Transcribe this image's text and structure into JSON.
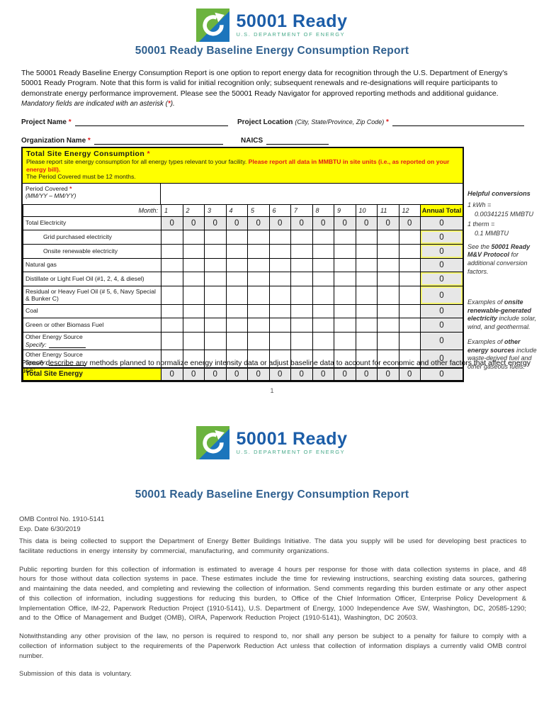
{
  "colors": {
    "accent_blue": "#2E5F8F",
    "logo_green": "#6CB33F",
    "logo_blue": "#1C75BC",
    "logo_text_blue": "#1B5DA8",
    "doe_teal": "#45A888",
    "highlight_yellow": "#FFFF00",
    "alert_red": "#E11B1B",
    "cell_gray": "#E7E7E7"
  },
  "logo": {
    "brand": "50001 Ready",
    "agency": "U.S. DEPARTMENT OF ENERGY"
  },
  "title": "50001 Ready Baseline Energy Consumption Report",
  "intro": {
    "text": "The 50001 Ready Baseline Energy Consumption Report is one option to report energy data for recognition through the U.S. Department of Energy's 50001 Ready Program. Note that this form is valid for initial recognition only; subsequent renewals and re-designations will require participants to demonstrate energy performance improvement. Please see the 50001 Ready Navigator for approved reporting methods and additional guidance. ",
    "note_pre": "Mandatory fields are indicated with an asterisk (",
    "note_asterisk": "*",
    "note_post": ")."
  },
  "fields": {
    "project_name_label": "Project Name",
    "project_location_label": "Project Location",
    "project_location_hint": "(City, State/Province, Zip Code)",
    "organization_name_label": "Organization Name",
    "naics_label": "NAICS",
    "asterisk": "*"
  },
  "table": {
    "title": "Total Site Energy Consumption ",
    "title_asterisk": "*",
    "instr_black": "Please report site energy consumption for all energy types relevant to your facility. ",
    "instr_red": "Please report all data in MMBTU in site units (i.e., as reported on your energy bill).",
    "instr_line2": "The Period Covered must be 12 months.",
    "period_label": "Period Covered ",
    "period_asterisk": "*",
    "period_hint": "(MM/YY – MM/YY)",
    "month_label": "Month:",
    "months": [
      "1",
      "2",
      "3",
      "4",
      "5",
      "6",
      "7",
      "8",
      "9",
      "10",
      "11",
      "12"
    ],
    "annual_total_label": "Annual Total",
    "rows": [
      {
        "label": "Total Electricity",
        "indent": false,
        "shaded": true,
        "total": false,
        "values": [
          "0",
          "0",
          "0",
          "0",
          "0",
          "0",
          "0",
          "0",
          "0",
          "0",
          "0",
          "0"
        ],
        "annual": "0"
      },
      {
        "label": "Grid purchased electricity",
        "indent": true,
        "shaded": false,
        "annual_hl": true,
        "values": [
          "",
          "",
          "",
          "",
          "",
          "",
          "",
          "",
          "",
          "",
          "",
          ""
        ],
        "annual": "0"
      },
      {
        "label": "Onsite renewable electricity",
        "indent": true,
        "shaded": false,
        "annual_hl": true,
        "values": [
          "",
          "",
          "",
          "",
          "",
          "",
          "",
          "",
          "",
          "",
          "",
          ""
        ],
        "annual": "0"
      },
      {
        "label": "Natural gas",
        "indent": false,
        "shaded": false,
        "values": [
          "",
          "",
          "",
          "",
          "",
          "",
          "",
          "",
          "",
          "",
          "",
          ""
        ],
        "annual": "0"
      },
      {
        "label": "Distillate or Light Fuel Oil (#1, 2, 4, & diesel)",
        "indent": false,
        "shaded": false,
        "annual_hl": true,
        "values": [
          "",
          "",
          "",
          "",
          "",
          "",
          "",
          "",
          "",
          "",
          "",
          ""
        ],
        "annual": "0"
      },
      {
        "label": "Residual or Heavy Fuel Oil (# 5, 6, Navy Special & Bunker C)",
        "indent": false,
        "shaded": false,
        "annual_hl": true,
        "values": [
          "",
          "",
          "",
          "",
          "",
          "",
          "",
          "",
          "",
          "",
          "",
          ""
        ],
        "annual": "0"
      },
      {
        "label": "Coal",
        "indent": false,
        "shaded": false,
        "values": [
          "",
          "",
          "",
          "",
          "",
          "",
          "",
          "",
          "",
          "",
          "",
          ""
        ],
        "annual": "0"
      },
      {
        "label": "Green or other Biomass Fuel",
        "indent": false,
        "shaded": false,
        "values": [
          "",
          "",
          "",
          "",
          "",
          "",
          "",
          "",
          "",
          "",
          "",
          ""
        ],
        "annual": "0"
      },
      {
        "label": "Other Energy Source",
        "specify": "Specify:",
        "indent": false,
        "shaded": false,
        "values": [
          "",
          "",
          "",
          "",
          "",
          "",
          "",
          "",
          "",
          "",
          "",
          ""
        ],
        "annual": "0"
      },
      {
        "label": "Other Energy Source",
        "specify": "Specify:",
        "indent": false,
        "shaded": false,
        "values": [
          "",
          "",
          "",
          "",
          "",
          "",
          "",
          "",
          "",
          "",
          "",
          ""
        ],
        "annual": "0"
      },
      {
        "label": "Total Site Energy",
        "indent": false,
        "shaded": true,
        "total": true,
        "values": [
          "0",
          "0",
          "0",
          "0",
          "0",
          "0",
          "0",
          "0",
          "0",
          "0",
          "0",
          "0"
        ],
        "annual": "0"
      }
    ]
  },
  "conversions": {
    "title": "Helpful conversions",
    "line1": "1 kWh =",
    "line1b": "0.00341215 MMBTU",
    "line2": "1 therm =",
    "line2b": "0.1 MMBTU",
    "see_pre": "See the ",
    "see_bold": "50001 Ready M&V Protocol",
    "see_post": " for additional conversion factors.",
    "ex1_pre": "Examples of ",
    "ex1_bold": "onsite renewable-generated electricity",
    "ex1_post": " include solar, wind, and geothermal.",
    "ex2_pre": "Examples of ",
    "ex2_bold": "other energy sources",
    "ex2_post": " include waste-derived fuel and other gaseous fuels."
  },
  "describe_prompt": "Please describe any methods planned to normalize energy intensity data or adjust baseline data to account for economic and other factors that affect energy use:",
  "page_number": "1",
  "page2": {
    "title": "50001 Ready Baseline Energy Consumption Report",
    "omb_line1": "OMB Control No. 1910-5141",
    "omb_line2": "Exp. Date 6/30/2019",
    "paragraphs": [
      "This data is being collected to support the Department of Energy Better Buildings Initiative. The data you supply will be used for developing best practices to facilitate reductions in energy intensity by commercial, manufacturing, and community organizations.",
      "Public reporting burden for this collection of information is estimated to average 4 hours per response for those with data collection systems in place, and 48 hours for those without data collection systems in pace. These estimates include the time for reviewing instructions, searching existing data sources, gathering and maintaining the data needed, and completing and reviewing the collection of information.  Send comments regarding this burden estimate or any other aspect of this collection of information, including suggestions for reducing this burden, to Office of the Chief Information Officer, Enterprise Policy Development & Implementation Office, IM-22, Paperwork Reduction Project (1910-5141), U.S. Department of Energy, 1000 Independence Ave SW, Washington, DC, 20585-1290; and to the Office of Management and Budget (OMB), OIRA, Paperwork Reduction Project (1910-5141), Washington, DC  20503.",
      "Notwithstanding any other provision of the law, no person is required to respond to, nor shall any person be subject to a penalty for failure to comply with a collection of information subject to the requirements of the Paperwork Reduction Act unless that collection of information displays a currently valid OMB control number.",
      "Submission of this data is voluntary."
    ]
  }
}
